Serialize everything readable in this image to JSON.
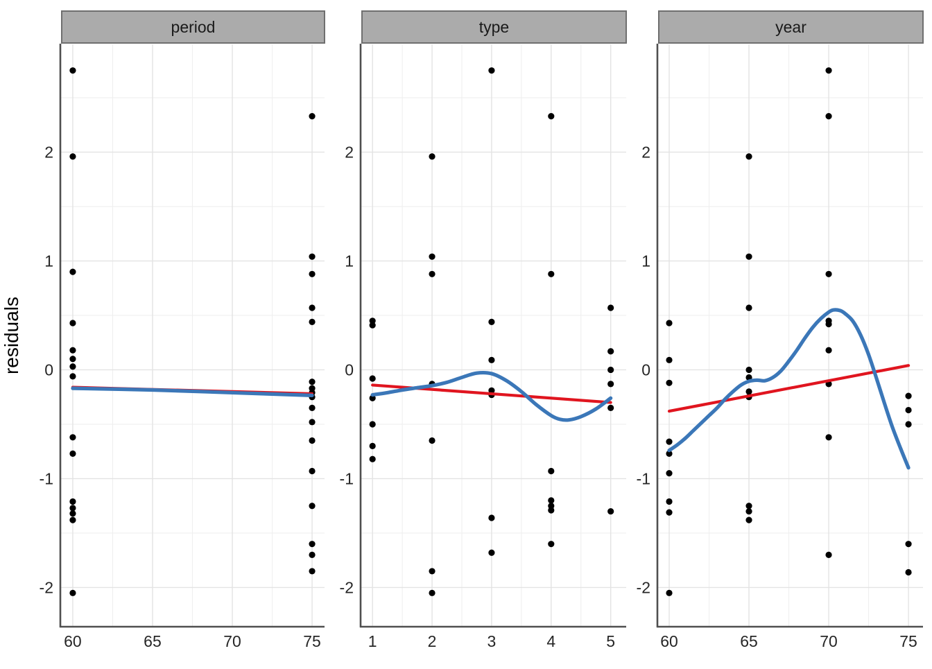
{
  "chart_data": {
    "type": "scatter",
    "title": "",
    "ylabel": "residuals",
    "xlabel": "",
    "grid": "on",
    "legend": "none",
    "y_axis": {
      "ticks": [
        2,
        1,
        0,
        -1,
        -2
      ],
      "range": [
        -2.36,
        2.99
      ],
      "grid_major": [
        2,
        1,
        0,
        -1,
        -2
      ],
      "grid_minor": [
        2.5,
        1.5,
        0.5,
        -0.5,
        -1.5
      ]
    },
    "facets": [
      {
        "label": "period",
        "x_ticks": [
          60,
          65,
          70,
          75
        ],
        "x_grid_minor": [
          62.5,
          67.5,
          72.5
        ],
        "x_range": [
          59.22,
          75.78
        ],
        "points": [
          [
            60,
            2.75
          ],
          [
            60,
            1.96
          ],
          [
            60,
            0.9
          ],
          [
            60,
            0.43
          ],
          [
            60,
            0.18
          ],
          [
            60,
            0.1
          ],
          [
            60,
            0.03
          ],
          [
            60,
            -0.06
          ],
          [
            60,
            -0.62
          ],
          [
            60,
            -0.77
          ],
          [
            60,
            -1.21
          ],
          [
            60,
            -1.27
          ],
          [
            60,
            -1.32
          ],
          [
            60,
            -1.38
          ],
          [
            60,
            -2.05
          ],
          [
            75,
            2.33
          ],
          [
            75,
            1.04
          ],
          [
            75,
            0.88
          ],
          [
            75,
            0.57
          ],
          [
            75,
            0.44
          ],
          [
            75,
            -0.11
          ],
          [
            75,
            -0.17
          ],
          [
            75,
            -0.21
          ],
          [
            75,
            -0.25
          ],
          [
            75,
            -0.35
          ],
          [
            75,
            -0.48
          ],
          [
            75,
            -0.65
          ],
          [
            75,
            -0.93
          ],
          [
            75,
            -1.25
          ],
          [
            75,
            -1.6
          ],
          [
            75,
            -1.7
          ],
          [
            75,
            -1.85
          ]
        ],
        "lm": [
          [
            60,
            -0.16
          ],
          [
            75,
            -0.22
          ]
        ],
        "loess": [
          [
            60,
            -0.17
          ],
          [
            65,
            -0.185
          ],
          [
            70,
            -0.21
          ],
          [
            75,
            -0.235
          ]
        ]
      },
      {
        "label": "type",
        "x_ticks": [
          1,
          2,
          3,
          4,
          5
        ],
        "x_grid_minor": [
          1.5,
          2.5,
          3.5,
          4.5
        ],
        "x_range": [
          0.8,
          5.26
        ],
        "points": [
          [
            1,
            0.45
          ],
          [
            1,
            0.41
          ],
          [
            1,
            -0.08
          ],
          [
            1,
            -0.26
          ],
          [
            1,
            -0.5
          ],
          [
            1,
            -0.7
          ],
          [
            1,
            -0.82
          ],
          [
            2,
            1.96
          ],
          [
            2,
            1.04
          ],
          [
            2,
            0.88
          ],
          [
            2,
            -0.13
          ],
          [
            2,
            -0.65
          ],
          [
            2,
            -1.85
          ],
          [
            2,
            -2.05
          ],
          [
            3,
            2.75
          ],
          [
            3,
            0.44
          ],
          [
            3,
            0.09
          ],
          [
            3,
            -0.19
          ],
          [
            3,
            -0.23
          ],
          [
            3,
            -1.36
          ],
          [
            3,
            -1.68
          ],
          [
            4,
            2.33
          ],
          [
            4,
            0.88
          ],
          [
            4,
            -0.93
          ],
          [
            4,
            -1.2
          ],
          [
            4,
            -1.25
          ],
          [
            4,
            -1.29
          ],
          [
            4,
            -1.6
          ],
          [
            5,
            0.57
          ],
          [
            5,
            0.17
          ],
          [
            5,
            0.0
          ],
          [
            5,
            -0.13
          ],
          [
            5,
            -0.35
          ],
          [
            5,
            -1.3
          ]
        ],
        "lm": [
          [
            1,
            -0.14
          ],
          [
            5,
            -0.3
          ]
        ],
        "loess": [
          [
            1.0,
            -0.23
          ],
          [
            1.25,
            -0.21
          ],
          [
            1.5,
            -0.185
          ],
          [
            1.75,
            -0.165
          ],
          [
            2.0,
            -0.145
          ],
          [
            2.25,
            -0.115
          ],
          [
            2.5,
            -0.07
          ],
          [
            2.75,
            -0.03
          ],
          [
            3.0,
            -0.035
          ],
          [
            3.25,
            -0.1
          ],
          [
            3.5,
            -0.2
          ],
          [
            3.75,
            -0.32
          ],
          [
            4.0,
            -0.42
          ],
          [
            4.15,
            -0.455
          ],
          [
            4.3,
            -0.46
          ],
          [
            4.5,
            -0.43
          ],
          [
            4.75,
            -0.36
          ],
          [
            5.0,
            -0.26
          ]
        ]
      },
      {
        "label": "year",
        "x_ticks": [
          60,
          65,
          70,
          75
        ],
        "x_grid_minor": [
          62.5,
          67.5,
          72.5
        ],
        "x_range": [
          59.26,
          75.91
        ],
        "points": [
          [
            60,
            0.43
          ],
          [
            60,
            0.09
          ],
          [
            60,
            -0.12
          ],
          [
            60,
            -0.66
          ],
          [
            60,
            -0.77
          ],
          [
            60,
            -0.95
          ],
          [
            60,
            -1.21
          ],
          [
            60,
            -1.31
          ],
          [
            60,
            -2.05
          ],
          [
            65,
            1.96
          ],
          [
            65,
            1.04
          ],
          [
            65,
            0.57
          ],
          [
            65,
            0.0
          ],
          [
            65,
            -0.07
          ],
          [
            65,
            -0.2
          ],
          [
            65,
            -0.25
          ],
          [
            65,
            -1.25
          ],
          [
            65,
            -1.3
          ],
          [
            65,
            -1.38
          ],
          [
            70,
            2.75
          ],
          [
            70,
            2.33
          ],
          [
            70,
            0.88
          ],
          [
            70,
            0.45
          ],
          [
            70,
            0.42
          ],
          [
            70,
            0.18
          ],
          [
            70,
            -0.13
          ],
          [
            70,
            -0.62
          ],
          [
            70,
            -1.7
          ],
          [
            75,
            -0.24
          ],
          [
            75,
            -0.37
          ],
          [
            75,
            -0.5
          ],
          [
            75,
            -1.6
          ],
          [
            75,
            -1.86
          ]
        ],
        "lm": [
          [
            60,
            -0.38
          ],
          [
            75,
            0.04
          ]
        ],
        "loess": [
          [
            60,
            -0.74
          ],
          [
            60.5,
            -0.69
          ],
          [
            61,
            -0.63
          ],
          [
            61.5,
            -0.56
          ],
          [
            62,
            -0.49
          ],
          [
            62.5,
            -0.42
          ],
          [
            63,
            -0.35
          ],
          [
            63.5,
            -0.27
          ],
          [
            64,
            -0.2
          ],
          [
            64.5,
            -0.14
          ],
          [
            65,
            -0.105
          ],
          [
            65.5,
            -0.095
          ],
          [
            66,
            -0.1
          ],
          [
            66.5,
            -0.07
          ],
          [
            67,
            -0.01
          ],
          [
            67.5,
            0.08
          ],
          [
            68,
            0.18
          ],
          [
            68.5,
            0.29
          ],
          [
            69,
            0.39
          ],
          [
            69.5,
            0.47
          ],
          [
            70,
            0.53
          ],
          [
            70.3,
            0.55
          ],
          [
            70.7,
            0.545
          ],
          [
            71,
            0.52
          ],
          [
            71.5,
            0.45
          ],
          [
            72,
            0.32
          ],
          [
            72.5,
            0.14
          ],
          [
            73,
            -0.08
          ],
          [
            73.5,
            -0.31
          ],
          [
            74,
            -0.53
          ],
          [
            74.5,
            -0.72
          ],
          [
            75,
            -0.9
          ]
        ]
      }
    ],
    "smoothers": [
      {
        "name": "linear-fit",
        "color": "#e0151f"
      },
      {
        "name": "loess-fit",
        "color": "#3b77b8"
      }
    ]
  },
  "colors": {
    "background": "#ffffff",
    "strip_fill": "#ababab",
    "strip_border": "#6f6f6f",
    "strip_text": "#1a1a1a",
    "axis_line": "#4f4f4f",
    "grid_major": "#e3e3e3",
    "grid_minor": "#efefef",
    "tick_text": "#262626",
    "point": "#000000",
    "lm_line": "#e0151f",
    "loess_line": "#3b77b8"
  }
}
